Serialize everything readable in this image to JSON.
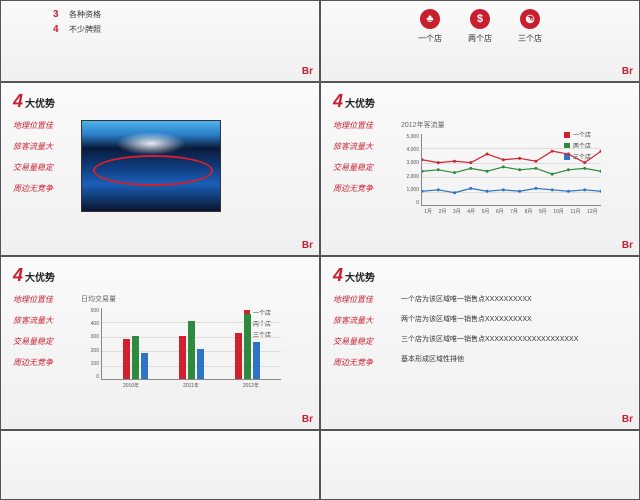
{
  "colors": {
    "accent": "#c81e2e",
    "s1": "#d3202f",
    "s2": "#2e8b3d",
    "s3": "#2f73c4"
  },
  "br": "Br",
  "slide1": {
    "items": [
      {
        "n": "3",
        "t": "各种资格"
      },
      {
        "n": "4",
        "t": "不少牌照"
      }
    ]
  },
  "slide2": {
    "icons": [
      {
        "bg": "#c81e2e",
        "glyph": "♣",
        "label": "一个店"
      },
      {
        "bg": "#c81e2e",
        "glyph": "$",
        "label": "两个店"
      },
      {
        "bg": "#c81e2e",
        "glyph": "☯",
        "label": "三个店"
      }
    ]
  },
  "common": {
    "big4": "4",
    "title": "大优势",
    "adv": [
      "地理位置佳",
      "旅客流量大",
      "交易量稳定",
      "周边无竞争"
    ]
  },
  "slide4": {
    "subtitle": "2012年客流量",
    "ylim": [
      0,
      5000
    ],
    "yticks": [
      "5,000",
      "4,000",
      "3,000",
      "2,000",
      "1,000",
      "0"
    ],
    "xticks": [
      "1月",
      "2月",
      "3月",
      "4月",
      "5月",
      "6月",
      "7月",
      "8月",
      "9月",
      "10月",
      "11月",
      "12月"
    ],
    "legend": [
      "一个店",
      "两个店",
      "三个店"
    ],
    "series": {
      "s1": [
        3200,
        3000,
        3100,
        3000,
        3600,
        3200,
        3300,
        3100,
        3800,
        3600,
        3000,
        3800
      ],
      "s2": [
        2400,
        2500,
        2300,
        2600,
        2400,
        2700,
        2500,
        2600,
        2200,
        2500,
        2600,
        2400
      ],
      "s3": [
        1000,
        1100,
        900,
        1200,
        1000,
        1100,
        1000,
        1200,
        1100,
        1000,
        1100,
        1000
      ]
    }
  },
  "slide5": {
    "subtitle": "日均交易量",
    "ylim": [
      0,
      500
    ],
    "yticks": [
      "500",
      "400",
      "300",
      "200",
      "100",
      "0"
    ],
    "xticks": [
      "2010年",
      "2011年",
      "2012年"
    ],
    "legend": [
      "一个店",
      "两个店",
      "三个店"
    ],
    "groups": [
      {
        "vals": [
          280,
          300,
          180
        ]
      },
      {
        "vals": [
          300,
          400,
          210
        ]
      },
      {
        "vals": [
          320,
          450,
          260
        ]
      }
    ]
  },
  "slide6": {
    "lines": [
      "一个店为该区域唯一销售点XXXXXXXXXX",
      "两个店为该区域唯一销售点XXXXXXXXXX",
      "三个店为该区域唯一销售点XXXXXXXXXXXXXXXXXXXX",
      "基本形成区域性排他"
    ]
  }
}
